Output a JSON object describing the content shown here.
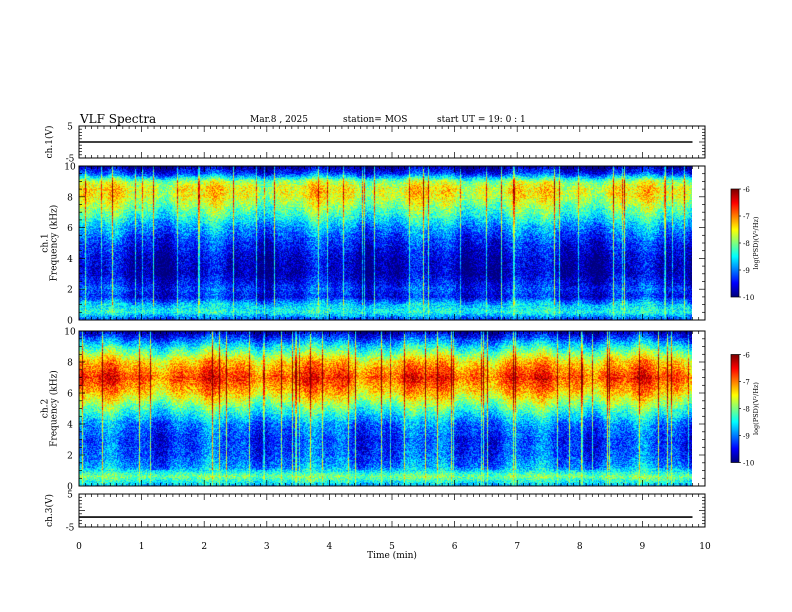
{
  "header": {
    "title": "VLF Spectra",
    "date": "Mar.8  , 2025",
    "station": "station= MOS",
    "start": "start  UT  =   19: 0  : 1"
  },
  "chart_data": [
    {
      "type": "line",
      "name": "ch1-voltage",
      "ylabel": "ch.1(V)",
      "ylim": [
        -5,
        5
      ],
      "yticks": [
        "5",
        "-5"
      ],
      "x": [
        0,
        9.8
      ],
      "y": [
        0,
        0
      ]
    },
    {
      "type": "heatmap",
      "name": "ch1-spectrogram",
      "ylabel": "ch.1\nFrequency  (kHz)",
      "xlim": [
        0,
        10
      ],
      "ylim": [
        0,
        10
      ],
      "yticks": [
        "0",
        "2",
        "4",
        "6",
        "8",
        "10"
      ],
      "data_xrange": [
        0,
        9.8
      ],
      "colorbar": {
        "label": "log(PSD)(V²/Hz)",
        "range": [
          -10,
          -6
        ],
        "ticks": [
          "-6",
          "-7",
          "-8",
          "-9",
          "-10"
        ]
      },
      "profile": [
        {
          "f": 0.0,
          "v": -9.3
        },
        {
          "f": 0.5,
          "v": -8.4
        },
        {
          "f": 1.0,
          "v": -8.7
        },
        {
          "f": 1.5,
          "v": -9.5
        },
        {
          "f": 2.0,
          "v": -9.3
        },
        {
          "f": 3.0,
          "v": -9.8
        },
        {
          "f": 4.0,
          "v": -9.7
        },
        {
          "f": 5.0,
          "v": -9.4
        },
        {
          "f": 6.0,
          "v": -8.9
        },
        {
          "f": 7.0,
          "v": -8.2
        },
        {
          "f": 8.0,
          "v": -7.6
        },
        {
          "f": 8.5,
          "v": -7.5
        },
        {
          "f": 9.0,
          "v": -7.9
        },
        {
          "f": 9.5,
          "v": -9.3
        },
        {
          "f": 10.0,
          "v": -10.0
        }
      ]
    },
    {
      "type": "heatmap",
      "name": "ch2-spectrogram",
      "ylabel": "ch.2\nFrequency  (kHz)",
      "xlim": [
        0,
        10
      ],
      "ylim": [
        0,
        10
      ],
      "yticks": [
        "0",
        "2",
        "4",
        "6",
        "8",
        "10"
      ],
      "data_xrange": [
        0,
        9.8
      ],
      "colorbar": {
        "label": "log(PSD)(V²/Hz)",
        "range": [
          -10,
          -6
        ],
        "ticks": [
          "-6",
          "-7",
          "-8",
          "-9",
          "-10"
        ]
      },
      "profile": [
        {
          "f": 0.0,
          "v": -8.8
        },
        {
          "f": 0.6,
          "v": -8.0
        },
        {
          "f": 1.2,
          "v": -8.9
        },
        {
          "f": 2.0,
          "v": -9.2
        },
        {
          "f": 3.0,
          "v": -9.3
        },
        {
          "f": 4.0,
          "v": -9.0
        },
        {
          "f": 5.0,
          "v": -8.2
        },
        {
          "f": 6.0,
          "v": -7.3
        },
        {
          "f": 7.0,
          "v": -6.7
        },
        {
          "f": 8.0,
          "v": -7.3
        },
        {
          "f": 9.0,
          "v": -8.5
        },
        {
          "f": 9.5,
          "v": -9.2
        },
        {
          "f": 10.0,
          "v": -9.9
        }
      ]
    },
    {
      "type": "line",
      "name": "ch3-voltage",
      "ylabel": "ch.3(V)",
      "ylim": [
        -5,
        5
      ],
      "yticks": [
        "5",
        "-5"
      ],
      "x": [
        0,
        9.8
      ],
      "y": [
        -2,
        -2
      ]
    }
  ],
  "xaxis": {
    "label": "Time  (min)",
    "range": [
      0,
      10
    ],
    "ticks": [
      "0",
      "1",
      "2",
      "3",
      "4",
      "5",
      "6",
      "7",
      "8",
      "9",
      "10"
    ]
  }
}
